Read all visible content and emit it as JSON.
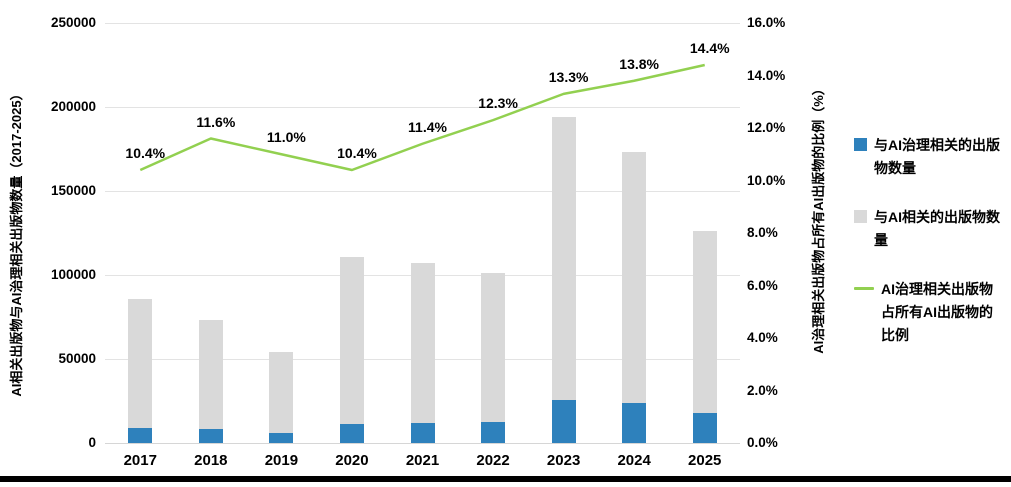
{
  "chart_data": {
    "type": "composite",
    "categories": [
      "2017",
      "2018",
      "2019",
      "2020",
      "2021",
      "2022",
      "2023",
      "2024",
      "2025"
    ],
    "series": [
      {
        "name": "与AI治理相关的出版物数量",
        "type": "bar",
        "axis": "left",
        "color": "#2e81bc",
        "values": [
          8900,
          8500,
          5900,
          11500,
          12200,
          12400,
          25800,
          23900,
          18100
        ]
      },
      {
        "name": "与AI相关的出版物数量",
        "type": "bar",
        "axis": "left",
        "color": "#d9d9d9",
        "values": [
          86000,
          73000,
          54000,
          111000,
          107000,
          101000,
          194000,
          173000,
          126000
        ]
      },
      {
        "name": "AI治理相关出版物占所有AI出版物的比例",
        "type": "line",
        "axis": "right",
        "color": "#92d050",
        "values": [
          10.4,
          11.6,
          11.0,
          10.4,
          11.4,
          12.3,
          13.3,
          13.8,
          14.4
        ],
        "point_labels": [
          "10.4%",
          "11.6%",
          "11.0%",
          "10.4%",
          "11.4%",
          "12.3%",
          "13.3%",
          "13.8%",
          "14.4%"
        ]
      }
    ],
    "ylabel_left": "AI相关出版物与AI治理相关出版物数量（2017-2025）",
    "ylabel_right": "AI治理相关出版物占所有AI出版物的比例（%）",
    "left_axis": {
      "min": 0,
      "max": 250000,
      "step": 50000,
      "tick_labels": [
        "0",
        "50000",
        "100000",
        "150000",
        "200000",
        "250000"
      ]
    },
    "right_axis": {
      "min": 0,
      "max": 16,
      "step": 2,
      "tick_labels": [
        "0.0%",
        "2.0%",
        "4.0%",
        "6.0%",
        "8.0%",
        "10.0%",
        "12.0%",
        "14.0%",
        "16.0%"
      ]
    },
    "grid": true,
    "legend_position": "right",
    "title": ""
  },
  "colors": {
    "governance_bar": "#2e81bc",
    "ai_bar": "#d9d9d9",
    "ratio_line": "#92d050",
    "gridline": "#e3e3e3",
    "text": "#000000"
  }
}
